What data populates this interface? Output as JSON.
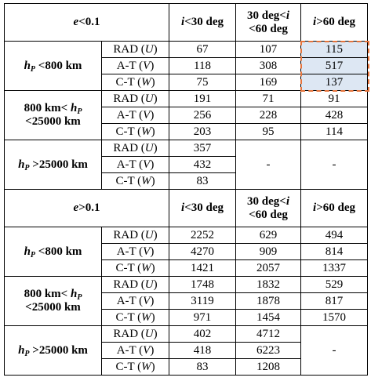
{
  "table": {
    "sections": [
      {
        "header": {
          "label": [
            {
              "text": "e",
              "italic": true
            },
            {
              "text": "<0.1"
            }
          ],
          "columns": [
            [
              {
                "text": "i",
                "italic": true
              },
              {
                "text": "<30 deg"
              }
            ],
            [
              {
                "text": "30 deg<"
              },
              {
                "text": "i",
                "italic": true
              },
              {
                "text": " <60 deg"
              }
            ],
            [
              {
                "text": "i",
                "italic": true
              },
              {
                "text": ">60 deg"
              }
            ]
          ]
        },
        "groups": [
          {
            "label": [
              {
                "text": "h",
                "italic": true
              },
              {
                "text": "P",
                "italic": true,
                "sub": true
              },
              {
                "text": " <800 km"
              }
            ],
            "highlight_column": 2,
            "rows": [
              {
                "label": [
                  {
                    "text": "RAD ("
                  },
                  {
                    "text": "U",
                    "italic": true
                  },
                  {
                    "text": ")"
                  }
                ],
                "cells": [
                  67,
                  107,
                  115
                ]
              },
              {
                "label": [
                  {
                    "text": "A-T ("
                  },
                  {
                    "text": "V",
                    "italic": true
                  },
                  {
                    "text": ")"
                  }
                ],
                "cells": [
                  118,
                  308,
                  517
                ]
              },
              {
                "label": [
                  {
                    "text": "C-T ("
                  },
                  {
                    "text": "W",
                    "italic": true
                  },
                  {
                    "text": ")"
                  }
                ],
                "cells": [
                  75,
                  169,
                  137
                ]
              }
            ]
          },
          {
            "label": [
              {
                "text": "800 km< "
              },
              {
                "text": "h",
                "italic": true
              },
              {
                "text": "P",
                "italic": true,
                "sub": true
              },
              {
                "text": " <25000 km"
              }
            ],
            "rows": [
              {
                "label": [
                  {
                    "text": "RAD ("
                  },
                  {
                    "text": "U",
                    "italic": true
                  },
                  {
                    "text": ")"
                  }
                ],
                "cells": [
                  191,
                  71,
                  91
                ]
              },
              {
                "label": [
                  {
                    "text": "A-T ("
                  },
                  {
                    "text": "V",
                    "italic": true
                  },
                  {
                    "text": ")"
                  }
                ],
                "cells": [
                  256,
                  228,
                  428
                ]
              },
              {
                "label": [
                  {
                    "text": "C-T ("
                  },
                  {
                    "text": "W",
                    "italic": true
                  },
                  {
                    "text": ")"
                  }
                ],
                "cells": [
                  203,
                  95,
                  114
                ]
              }
            ]
          },
          {
            "label": [
              {
                "text": "h",
                "italic": true
              },
              {
                "text": "P",
                "italic": true,
                "sub": true
              },
              {
                "text": " >25000 km"
              }
            ],
            "merged": [
              "-",
              "-"
            ],
            "rows": [
              {
                "label": [
                  {
                    "text": "RAD ("
                  },
                  {
                    "text": "U",
                    "italic": true
                  },
                  {
                    "text": ")"
                  }
                ],
                "cells": [
                  357
                ]
              },
              {
                "label": [
                  {
                    "text": "A-T ("
                  },
                  {
                    "text": "V",
                    "italic": true
                  },
                  {
                    "text": ")"
                  }
                ],
                "cells": [
                  432
                ]
              },
              {
                "label": [
                  {
                    "text": "C-T ("
                  },
                  {
                    "text": "W",
                    "italic": true
                  },
                  {
                    "text": ")"
                  }
                ],
                "cells": [
                  83
                ]
              }
            ]
          }
        ]
      },
      {
        "header": {
          "label": [
            {
              "text": "e",
              "italic": true
            },
            {
              "text": ">0.1"
            }
          ],
          "columns": [
            [
              {
                "text": "i",
                "italic": true
              },
              {
                "text": "<30 deg"
              }
            ],
            [
              {
                "text": "30 deg<"
              },
              {
                "text": "i",
                "italic": true
              },
              {
                "text": " <60 deg"
              }
            ],
            [
              {
                "text": "i",
                "italic": true
              },
              {
                "text": ">60 deg"
              }
            ]
          ]
        },
        "groups": [
          {
            "label": [
              {
                "text": "h",
                "italic": true
              },
              {
                "text": "P",
                "italic": true,
                "sub": true
              },
              {
                "text": " <800 km"
              }
            ],
            "rows": [
              {
                "label": [
                  {
                    "text": "RAD ("
                  },
                  {
                    "text": "U",
                    "italic": true
                  },
                  {
                    "text": ")"
                  }
                ],
                "cells": [
                  2252,
                  629,
                  494
                ]
              },
              {
                "label": [
                  {
                    "text": "A-T ("
                  },
                  {
                    "text": "V",
                    "italic": true
                  },
                  {
                    "text": ")"
                  }
                ],
                "cells": [
                  4270,
                  909,
                  814
                ]
              },
              {
                "label": [
                  {
                    "text": "C-T ("
                  },
                  {
                    "text": "W",
                    "italic": true
                  },
                  {
                    "text": ")"
                  }
                ],
                "cells": [
                  1421,
                  2057,
                  1337
                ]
              }
            ]
          },
          {
            "label": [
              {
                "text": "800 km< "
              },
              {
                "text": "h",
                "italic": true
              },
              {
                "text": "P",
                "italic": true,
                "sub": true
              },
              {
                "text": " <25000 km"
              }
            ],
            "rows": [
              {
                "label": [
                  {
                    "text": "RAD ("
                  },
                  {
                    "text": "U",
                    "italic": true
                  },
                  {
                    "text": ")"
                  }
                ],
                "cells": [
                  1748,
                  1832,
                  529
                ]
              },
              {
                "label": [
                  {
                    "text": "A-T ("
                  },
                  {
                    "text": "V",
                    "italic": true
                  },
                  {
                    "text": ")"
                  }
                ],
                "cells": [
                  3119,
                  1878,
                  817
                ]
              },
              {
                "label": [
                  {
                    "text": "C-T ("
                  },
                  {
                    "text": "W",
                    "italic": true
                  },
                  {
                    "text": ")"
                  }
                ],
                "cells": [
                  971,
                  1454,
                  1570
                ]
              }
            ]
          },
          {
            "label": [
              {
                "text": "h",
                "italic": true
              },
              {
                "text": "P",
                "italic": true,
                "sub": true
              },
              {
                "text": " >25000 km"
              }
            ],
            "merged": [
              "-"
            ],
            "rows": [
              {
                "label": [
                  {
                    "text": "RAD ("
                  },
                  {
                    "text": "U",
                    "italic": true
                  },
                  {
                    "text": ")"
                  }
                ],
                "cells": [
                  402,
                  4712
                ]
              },
              {
                "label": [
                  {
                    "text": "A-T ("
                  },
                  {
                    "text": "V",
                    "italic": true
                  },
                  {
                    "text": ")"
                  }
                ],
                "cells": [
                  418,
                  6223
                ]
              },
              {
                "label": [
                  {
                    "text": "C-T ("
                  },
                  {
                    "text": "W",
                    "italic": true
                  },
                  {
                    "text": ")"
                  }
                ],
                "cells": [
                  83,
                  1208
                ]
              }
            ]
          }
        ]
      }
    ]
  }
}
